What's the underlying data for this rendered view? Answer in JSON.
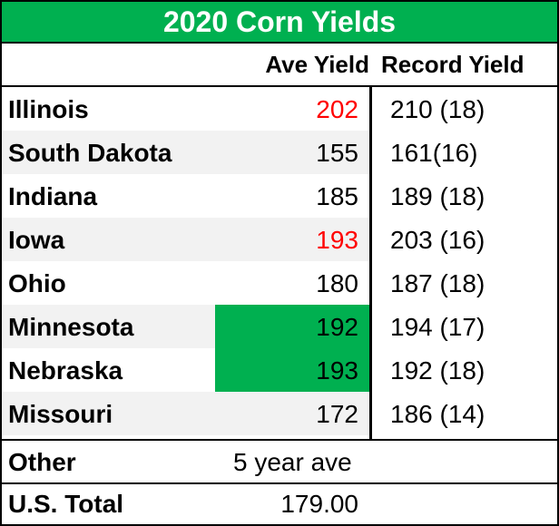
{
  "title": "2020 Corn Yields",
  "headers": {
    "ave": "Ave Yield",
    "record": "Record Yield"
  },
  "colors": {
    "title_bg": "#00b050",
    "highlight": "#00b050",
    "red_text": "#ff0000"
  },
  "rows": [
    {
      "state": "Illinois",
      "ave": "202",
      "record": "210 (18)",
      "ave_color": "red",
      "highlight": false
    },
    {
      "state": "South Dakota",
      "ave": "155",
      "record": "161(16)",
      "ave_color": "black",
      "highlight": false
    },
    {
      "state": "Indiana",
      "ave": "185",
      "record": "189 (18)",
      "ave_color": "black",
      "highlight": false
    },
    {
      "state": "Iowa",
      "ave": "193",
      "record": "203 (16)",
      "ave_color": "red",
      "highlight": false
    },
    {
      "state": "Ohio",
      "ave": "180",
      "record": "187 (18)",
      "ave_color": "black",
      "highlight": false
    },
    {
      "state": "Minnesota",
      "ave": "192",
      "record": "194 (17)",
      "ave_color": "black",
      "highlight": true
    },
    {
      "state": "Nebraska",
      "ave": "193",
      "record": "192 (18)",
      "ave_color": "black",
      "highlight": true
    },
    {
      "state": "Missouri",
      "ave": "172",
      "record": "186 (14)",
      "ave_color": "black",
      "highlight": false
    }
  ],
  "other": {
    "label": "Other",
    "value": "5 year ave"
  },
  "total": {
    "label": "U.S. Total",
    "value": "179.00"
  }
}
